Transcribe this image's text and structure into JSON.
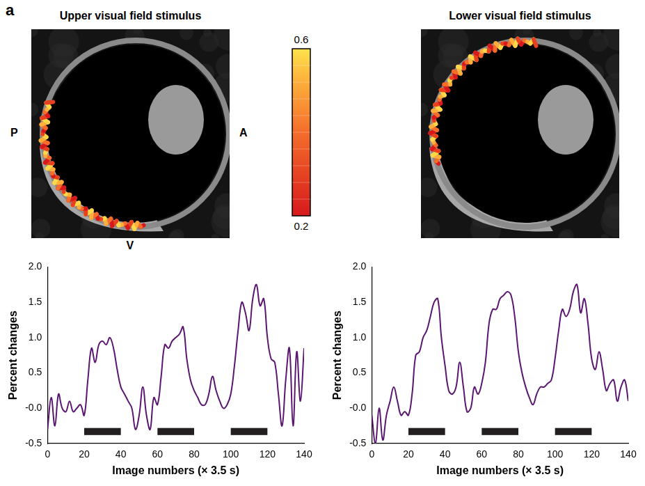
{
  "figure": {
    "panel_label": "a",
    "images": [
      {
        "title": "Upper visual field stimulus",
        "orientation_labels": {
          "left": "P",
          "right": "A",
          "bottom": "V"
        }
      },
      {
        "title": "Lower visual field stimulus"
      }
    ],
    "colorbar": {
      "range": [
        0.2,
        0.6
      ],
      "ticks": [
        0.6,
        0.2
      ]
    }
  },
  "chart_data": [
    {
      "type": "line",
      "xlabel": "Image numbers (× 3.5 s)",
      "ylabel": "Percent changes",
      "x": [
        0,
        2,
        4,
        6,
        8,
        10,
        12,
        14,
        16,
        18,
        20,
        22,
        24,
        26,
        28,
        30,
        32,
        34,
        36,
        38,
        40,
        42,
        44,
        46,
        48,
        50,
        52,
        54,
        56,
        58,
        60,
        62,
        64,
        66,
        68,
        70,
        72,
        74,
        76,
        78,
        80,
        82,
        84,
        86,
        88,
        90,
        92,
        94,
        96,
        98,
        100,
        102,
        104,
        106,
        108,
        110,
        112,
        114,
        116,
        118,
        120,
        122,
        124,
        126,
        128,
        130,
        132,
        134,
        136,
        138,
        140
      ],
      "values": [
        -0.3,
        0.15,
        -0.25,
        0.2,
        0.0,
        -0.05,
        0.1,
        -0.05,
        0.0,
        0.05,
        -0.1,
        0.4,
        0.85,
        0.65,
        0.9,
        0.95,
        0.9,
        1.0,
        0.85,
        0.55,
        0.3,
        0.2,
        0.1,
        0.0,
        -0.3,
        -0.1,
        0.3,
        -0.1,
        -0.3,
        0.15,
        0.05,
        0.45,
        0.9,
        0.85,
        0.95,
        1.0,
        1.05,
        1.15,
        0.7,
        0.4,
        0.25,
        0.15,
        0.05,
        0.05,
        0.2,
        0.45,
        0.25,
        0.1,
        0.0,
        0.05,
        0.2,
        0.6,
        1.1,
        1.5,
        1.35,
        1.1,
        1.55,
        1.75,
        1.45,
        1.55,
        1.0,
        0.7,
        0.65,
        0.2,
        -0.25,
        0.4,
        0.85,
        -0.25,
        0.8,
        0.1,
        0.85
      ],
      "color": "#5a1670",
      "line_style": "solid",
      "stimulus_blocks": [
        [
          20,
          40
        ],
        [
          60,
          80
        ],
        [
          100,
          120
        ]
      ],
      "xlim": [
        0,
        140
      ],
      "xticks": [
        0,
        20,
        40,
        60,
        80,
        100,
        120,
        140
      ],
      "ylim": [
        -0.5,
        2.0
      ],
      "yticks": [
        -0.5,
        {
          "value": 0,
          "label": "-0.0"
        },
        0.5,
        {
          "value": 1,
          "label": "1.0"
        },
        1.5,
        {
          "value": 2,
          "label": "2.0"
        }
      ],
      "grid": false
    },
    {
      "type": "line",
      "xlabel": "Image numbers (× 3.5 s)",
      "ylabel": "Percent changes",
      "x": [
        0,
        2,
        4,
        6,
        8,
        10,
        12,
        14,
        16,
        18,
        20,
        22,
        24,
        26,
        28,
        30,
        32,
        34,
        36,
        38,
        40,
        42,
        44,
        46,
        48,
        50,
        52,
        54,
        56,
        58,
        60,
        62,
        64,
        66,
        68,
        70,
        72,
        74,
        76,
        78,
        80,
        82,
        84,
        86,
        88,
        90,
        92,
        94,
        96,
        98,
        100,
        102,
        104,
        106,
        108,
        110,
        112,
        114,
        116,
        118,
        120,
        122,
        124,
        126,
        128,
        130,
        132,
        134,
        136,
        138,
        140
      ],
      "values": [
        -0.1,
        -0.5,
        0.0,
        -0.45,
        -0.1,
        0.1,
        0.3,
        0.1,
        -0.1,
        -0.05,
        -0.1,
        0.2,
        0.75,
        0.8,
        1.0,
        1.1,
        1.3,
        1.5,
        1.55,
        1.0,
        0.6,
        0.25,
        0.2,
        0.3,
        0.65,
        0.3,
        -0.05,
        0.0,
        0.3,
        0.2,
        0.35,
        0.65,
        1.2,
        1.4,
        1.4,
        1.55,
        1.6,
        1.65,
        1.6,
        1.3,
        0.8,
        0.5,
        0.3,
        0.15,
        0.05,
        0.2,
        0.3,
        0.3,
        0.35,
        0.4,
        0.7,
        1.1,
        1.4,
        1.3,
        1.4,
        1.65,
        1.75,
        1.35,
        1.55,
        1.2,
        0.7,
        0.55,
        0.8,
        0.55,
        0.25,
        0.35,
        0.4,
        0.1,
        0.3,
        0.4,
        0.1
      ],
      "color": "#5a1670",
      "line_style": "solid",
      "stimulus_blocks": [
        [
          20,
          40
        ],
        [
          60,
          80
        ],
        [
          100,
          120
        ]
      ],
      "xlim": [
        0,
        140
      ],
      "xticks": [
        0,
        20,
        40,
        60,
        80,
        100,
        120,
        140
      ],
      "ylim": [
        -0.5,
        2.0
      ],
      "yticks": [
        -0.5,
        {
          "value": 0,
          "label": "-0.0"
        },
        0.5,
        {
          "value": 1,
          "label": "1.0"
        },
        1.5,
        {
          "value": 2,
          "label": "2.0"
        }
      ],
      "grid": false
    }
  ]
}
